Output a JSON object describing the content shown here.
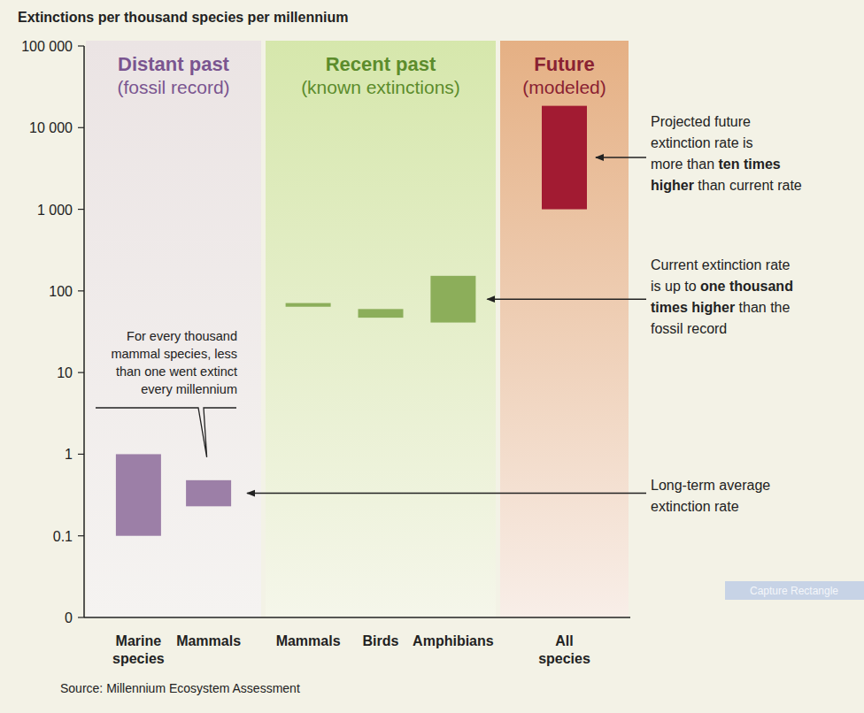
{
  "chart_data": {
    "type": "bar",
    "title": "Extinctions per thousand species per millennium",
    "source": "Source: Millennium Ecosystem Assessment",
    "log": "y",
    "grid": false,
    "ylim": [
      0.01,
      100000
    ],
    "yticks": [
      {
        "value": 0.01,
        "label": "0"
      },
      0.1,
      1,
      10,
      100,
      {
        "value": 1000,
        "label": "1 000"
      },
      {
        "value": 10000,
        "label": "10 000"
      },
      {
        "value": 100000,
        "label": "100 000"
      }
    ],
    "groups": [
      {
        "title": "Distant past",
        "subtitle": "(fossil record)",
        "color": "#9c7fa7",
        "categories": [
          "Marine species",
          "Mammals"
        ],
        "values": [
          [
            0.1,
            1
          ],
          [
            0.23,
            0.48
          ]
        ]
      },
      {
        "title": "Recent past",
        "subtitle": "(known extinctions)",
        "color": "#8cae5a",
        "categories": [
          "Mammals",
          "Birds",
          "Amphibians"
        ],
        "values": [
          [
            64,
            71
          ],
          [
            47,
            60
          ],
          [
            41,
            153
          ]
        ]
      },
      {
        "title": "Future",
        "subtitle": "(modeled)",
        "color": "#a21b32",
        "categories": [
          "All species"
        ],
        "values": [
          [
            1000,
            18500
          ]
        ]
      }
    ],
    "annotations": [
      {
        "lines": [
          [
            {
              "text": "For every thousand"
            }
          ],
          [
            {
              "text": "mammal species, less"
            }
          ],
          [
            {
              "text": "than one went extinct"
            }
          ],
          [
            {
              "text": "every millennium"
            }
          ]
        ]
      },
      {
        "lines": [
          [
            {
              "text": "Projected future"
            }
          ],
          [
            {
              "text": "extinction rate is"
            }
          ],
          [
            {
              "text": "more than "
            },
            {
              "text": "ten times",
              "bold": true
            }
          ],
          [
            {
              "text": "higher",
              "bold": true
            },
            {
              "text": " than current rate"
            }
          ]
        ]
      },
      {
        "lines": [
          [
            {
              "text": "Current extinction rate"
            }
          ],
          [
            {
              "text": "is up to "
            },
            {
              "text": "one thousand",
              "bold": true
            }
          ],
          [
            {
              "text": "times higher",
              "bold": true
            },
            {
              "text": " than the"
            }
          ],
          [
            {
              "text": "fossil record"
            }
          ]
        ]
      },
      {
        "lines": [
          [
            {
              "text": "Long-term average"
            }
          ],
          [
            {
              "text": "extinction rate"
            }
          ]
        ]
      },
      {
        "lines": [
          [
            {
              "text": "Capture Rectangle"
            }
          ]
        ]
      }
    ]
  }
}
